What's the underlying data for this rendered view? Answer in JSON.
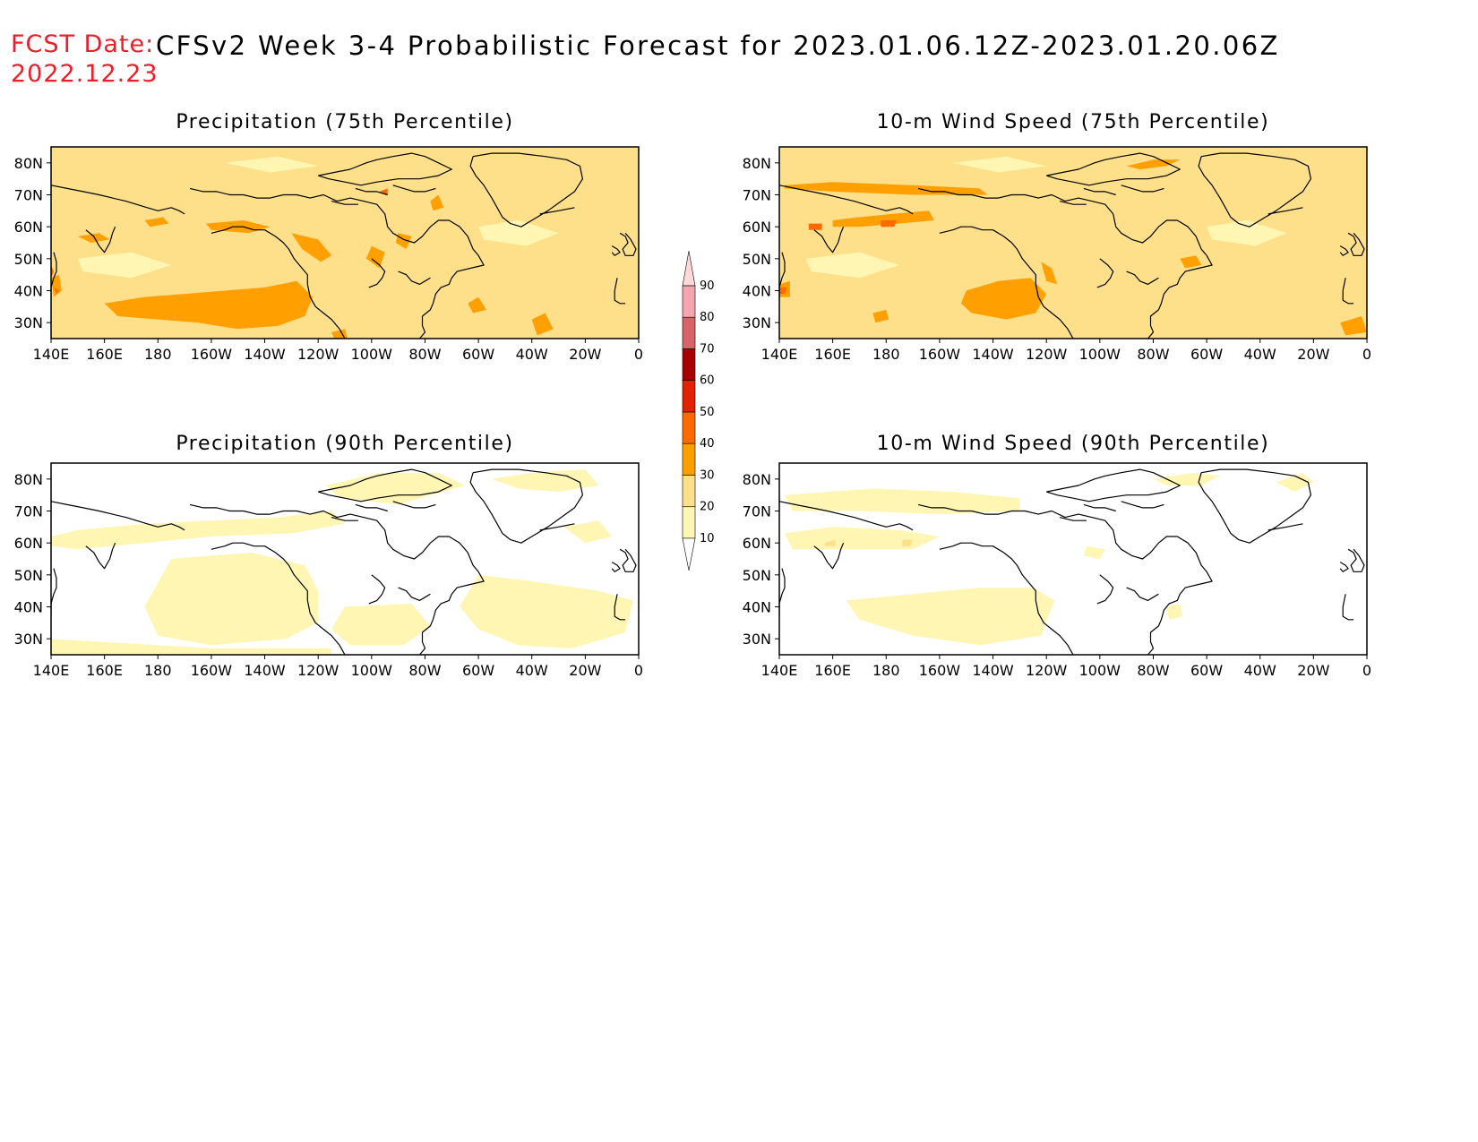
{
  "header": {
    "fcst_label": "FCST Date:",
    "title": "CFSv2 Week 3-4 Probabilistic Forecast for 2023.01.06.12Z-2023.01.20.06Z",
    "fcst_date": "2022.12.23"
  },
  "panels": [
    {
      "id": "precip-75",
      "title": "Precipitation (75th Percentile)",
      "field": "precip75"
    },
    {
      "id": "wind-75",
      "title": "10-m Wind Speed (75th Percentile)",
      "field": "wind75"
    },
    {
      "id": "precip-90",
      "title": "Precipitation (90th Percentile)",
      "field": "precip90"
    },
    {
      "id": "wind-90",
      "title": "10-m Wind Speed (90th Percentile)",
      "field": "wind90"
    }
  ],
  "axes": {
    "lon_labels": [
      "140E",
      "160E",
      "180",
      "160W",
      "140W",
      "120W",
      "100W",
      "80W",
      "60W",
      "40W",
      "20W",
      "0"
    ],
    "lon_values": [
      140,
      160,
      180,
      200,
      220,
      240,
      260,
      280,
      300,
      320,
      340,
      360
    ],
    "lat_labels": [
      "80N",
      "70N",
      "60N",
      "50N",
      "40N",
      "30N"
    ],
    "lat_values": [
      80,
      70,
      60,
      50,
      40,
      30
    ],
    "lon_range": [
      140,
      360
    ],
    "lat_range": [
      25,
      85
    ]
  },
  "colorbar": {
    "levels": [
      10,
      20,
      30,
      40,
      50,
      60,
      70,
      80,
      90
    ],
    "labels": [
      "10",
      "20",
      "30",
      "40",
      "50",
      "60",
      "70",
      "80",
      "90"
    ],
    "colors": [
      "#fff6b3",
      "#ffe08a",
      "#ff9f00",
      "#ff6a00",
      "#e02200",
      "#a80000",
      "#d86468",
      "#f4a6ae",
      "#ffd8dc"
    ]
  },
  "colors": {
    "title_red": "#e8202a",
    "coastline": "#000000"
  }
}
